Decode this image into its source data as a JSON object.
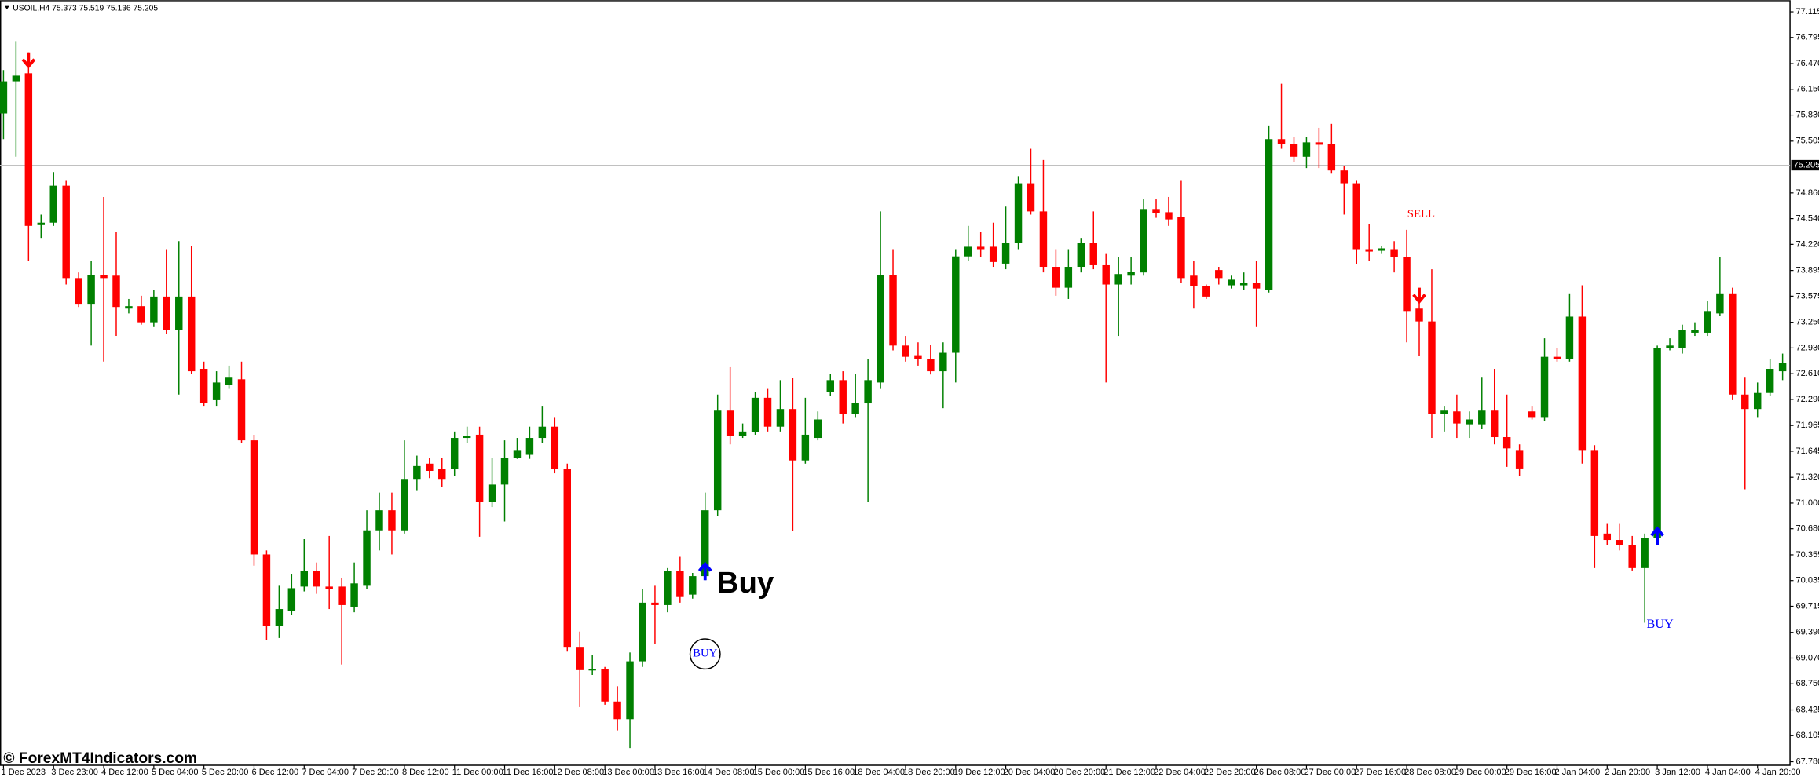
{
  "chart_data": {
    "type": "candlestick",
    "header": "USOIL,H4  75.373 75.519 75.136 75.205",
    "categories": [
      "1 Dec 2023",
      null,
      null,
      null,
      "3 Dec 23:00",
      null,
      null,
      null,
      "4 Dec 12:00",
      null,
      null,
      null,
      "5 Dec 04:00",
      null,
      null,
      null,
      "5 Dec 20:00",
      null,
      null,
      null,
      "6 Dec 12:00",
      null,
      null,
      null,
      "7 Dec 04:00",
      null,
      null,
      null,
      "7 Dec 20:00",
      null,
      null,
      null,
      "8 Dec 12:00",
      null,
      null,
      null,
      "11 Dec 00:00",
      null,
      null,
      null,
      "11 Dec 16:00",
      null,
      null,
      null,
      "12 Dec 08:00",
      null,
      null,
      null,
      "13 Dec 00:00",
      null,
      null,
      null,
      "13 Dec 16:00",
      null,
      null,
      null,
      "14 Dec 08:00",
      null,
      null,
      null,
      "15 Dec 00:00",
      null,
      null,
      null,
      "15 Dec 16:00",
      null,
      null,
      null,
      "18 Dec 04:00",
      null,
      null,
      null,
      "18 Dec 20:00",
      null,
      null,
      null,
      "19 Dec 12:00",
      null,
      null,
      null,
      "20 Dec 04:00",
      null,
      null,
      null,
      "20 Dec 20:00",
      null,
      null,
      null,
      "21 Dec 12:00",
      null,
      null,
      null,
      "22 Dec 04:00",
      null,
      null,
      null,
      "22 Dec 20:00",
      null,
      null,
      null,
      "26 Dec 08:00",
      null,
      null,
      null,
      "27 Dec 00:00",
      null,
      null,
      null,
      "27 Dec 16:00",
      null,
      null,
      null,
      "28 Dec 08:00",
      null,
      null,
      null,
      "29 Dec 00:00",
      null,
      null,
      null,
      "29 Dec 16:00",
      null,
      null,
      null,
      "2 Jan 04:00",
      null,
      null,
      null,
      "2 Jan 20:00",
      null,
      null,
      null,
      "3 Jan 12:00",
      null,
      null,
      null,
      "4 Jan 04:00",
      null,
      null,
      null,
      "4 Jan 20:00",
      null,
      null
    ],
    "open": [
      75.85,
      76.25,
      76.35,
      74.46,
      74.49,
      74.95,
      73.8,
      73.48,
      73.84,
      73.83,
      73.42,
      73.45,
      73.25,
      73.57,
      73.15,
      73.57,
      72.67,
      72.28,
      72.47,
      72.54,
      71.78,
      70.36,
      69.47,
      69.66,
      69.96,
      70.15,
      69.96,
      69.96,
      69.71,
      69.97,
      70.66,
      70.91,
      70.66,
      71.3,
      71.49,
      71.42,
      71.42,
      71.81,
      71.85,
      71.01,
      71.23,
      71.56,
      71.6,
      71.81,
      71.95,
      71.42,
      69.21,
      68.92,
      68.93,
      68.53,
      68.31,
      69.03,
      69.76,
      69.73,
      70.15,
      69.86,
      70.09,
      70.91,
      72.15,
      71.83,
      71.88,
      72.31,
      71.95,
      72.17,
      71.53,
      71.81,
      72.38,
      72.53,
      72.11,
      72.24,
      72.5,
      73.84,
      72.96,
      72.84,
      72.79,
      72.64,
      72.87,
      74.07,
      74.19,
      74.19,
      73.98,
      74.24,
      74.98,
      74.63,
      73.94,
      73.68,
      73.94,
      74.24,
      73.96,
      73.72,
      73.83,
      73.87,
      74.66,
      74.62,
      74.56,
      73.83,
      73.7,
      73.9,
      73.71,
      73.71,
      73.74,
      73.65,
      75.53,
      75.47,
      75.31,
      75.49,
      75.47,
      75.14,
      74.98,
      74.16,
      74.14,
      74.16,
      74.06,
      73.42,
      73.26,
      72.11,
      72.14,
      71.98,
      71.98,
      72.15,
      71.82,
      71.66,
      72.14,
      72.07,
      72.82,
      72.79,
      73.32,
      71.66,
      70.62,
      70.54,
      70.48,
      70.19,
      70.56,
      72.93,
      72.93,
      73.12,
      73.12,
      73.36,
      73.61,
      72.35,
      72.17,
      72.37,
      72.64
    ],
    "high": [
      76.39,
      76.75,
      76.61,
      74.59,
      75.12,
      75.02,
      73.87,
      74.01,
      74.81,
      74.37,
      73.54,
      73.58,
      73.65,
      74.16,
      74.26,
      74.2,
      72.76,
      72.64,
      72.71,
      72.76,
      71.85,
      70.41,
      69.97,
      70.12,
      70.55,
      70.26,
      70.59,
      70.07,
      70.26,
      70.91,
      71.13,
      71.13,
      71.78,
      71.59,
      71.56,
      71.56,
      71.89,
      71.95,
      71.95,
      71.56,
      71.78,
      71.81,
      71.95,
      72.21,
      72.07,
      71.49,
      69.4,
      69.11,
      68.96,
      68.72,
      69.14,
      69.93,
      69.97,
      70.19,
      70.33,
      70.13,
      71.13,
      72.35,
      72.7,
      71.99,
      72.38,
      72.43,
      72.53,
      72.56,
      72.31,
      72.14,
      72.61,
      72.64,
      72.61,
      72.79,
      74.63,
      74.16,
      73.08,
      73.0,
      72.97,
      73.0,
      74.16,
      74.45,
      74.37,
      74.49,
      74.69,
      75.07,
      75.41,
      75.27,
      74.16,
      74.16,
      74.3,
      74.63,
      74.11,
      74.06,
      74.06,
      74.78,
      74.78,
      74.81,
      75.02,
      74.01,
      73.72,
      73.94,
      73.83,
      73.87,
      74.01,
      75.7,
      76.22,
      75.56,
      75.56,
      75.67,
      75.72,
      75.2,
      75.02,
      74.47,
      74.2,
      74.26,
      74.4,
      73.54,
      73.91,
      72.21,
      72.35,
      72.14,
      72.57,
      72.67,
      72.35,
      71.73,
      72.21,
      73.05,
      72.93,
      73.61,
      73.71,
      71.72,
      70.74,
      70.74,
      70.59,
      70.62,
      72.96,
      73.05,
      73.22,
      73.25,
      73.51,
      74.06,
      73.68,
      72.57,
      72.5,
      72.79,
      72.86
    ],
    "low": [
      75.53,
      75.31,
      74.01,
      74.3,
      74.45,
      73.72,
      73.44,
      72.96,
      72.76,
      73.08,
      73.36,
      73.22,
      73.19,
      73.1,
      72.35,
      72.61,
      72.21,
      72.21,
      72.43,
      71.75,
      70.22,
      69.29,
      69.32,
      69.61,
      69.9,
      69.87,
      69.68,
      68.99,
      69.64,
      69.93,
      70.41,
      70.36,
      70.62,
      71.16,
      71.31,
      71.2,
      71.34,
      71.75,
      70.58,
      70.95,
      70.77,
      71.55,
      71.55,
      71.75,
      71.37,
      69.15,
      68.46,
      68.86,
      68.49,
      68.17,
      67.95,
      68.96,
      69.25,
      69.64,
      69.76,
      69.81,
      70.04,
      70.84,
      71.73,
      71.81,
      71.85,
      71.89,
      71.89,
      70.65,
      71.49,
      71.78,
      72.33,
      71.99,
      72.07,
      71.01,
      72.43,
      72.9,
      72.76,
      72.71,
      72.6,
      72.18,
      72.5,
      74.01,
      74.06,
      73.94,
      73.91,
      74.16,
      74.59,
      73.87,
      73.58,
      73.54,
      73.87,
      73.91,
      72.5,
      73.08,
      73.72,
      73.83,
      74.55,
      74.45,
      73.74,
      73.42,
      73.54,
      73.72,
      73.67,
      73.65,
      73.19,
      73.62,
      75.41,
      75.24,
      75.17,
      75.17,
      75.1,
      74.59,
      73.97,
      74.01,
      74.11,
      73.87,
      73.0,
      72.83,
      71.81,
      71.89,
      71.81,
      71.81,
      71.92,
      71.73,
      71.45,
      71.34,
      72.04,
      72.02,
      72.76,
      72.76,
      71.49,
      70.19,
      70.48,
      70.41,
      70.16,
      69.51,
      70.48,
      72.9,
      72.86,
      73.08,
      73.08,
      73.33,
      72.28,
      71.17,
      72.07,
      72.33,
      72.53
    ],
    "close": [
      76.25,
      76.32,
      74.45,
      74.49,
      74.95,
      73.8,
      73.48,
      73.84,
      73.8,
      73.44,
      73.45,
      73.25,
      73.57,
      73.15,
      73.57,
      72.64,
      72.25,
      72.5,
      72.57,
      71.78,
      70.36,
      69.47,
      69.68,
      69.94,
      70.15,
      69.96,
      69.93,
      69.73,
      70.0,
      70.66,
      70.91,
      70.66,
      71.3,
      71.46,
      71.4,
      71.3,
      71.81,
      71.83,
      71.01,
      71.23,
      71.56,
      71.66,
      71.81,
      71.95,
      71.42,
      69.21,
      68.92,
      68.93,
      68.53,
      68.31,
      69.03,
      69.76,
      69.73,
      70.15,
      69.83,
      70.09,
      70.91,
      72.15,
      71.83,
      71.89,
      72.31,
      71.95,
      72.17,
      71.53,
      71.85,
      72.04,
      72.53,
      72.11,
      72.25,
      72.53,
      73.84,
      72.96,
      72.82,
      72.79,
      72.64,
      72.87,
      74.07,
      74.19,
      74.16,
      74.0,
      74.24,
      74.98,
      74.63,
      73.94,
      73.68,
      73.94,
      74.24,
      73.96,
      73.72,
      73.85,
      73.88,
      74.66,
      74.61,
      74.53,
      73.8,
      73.7,
      73.57,
      73.8,
      73.78,
      73.74,
      73.67,
      75.53,
      75.47,
      75.31,
      75.49,
      75.46,
      75.14,
      74.98,
      74.16,
      74.13,
      74.17,
      74.06,
      73.39,
      73.26,
      72.11,
      72.15,
      71.99,
      72.04,
      72.15,
      71.82,
      71.68,
      71.43,
      72.07,
      72.82,
      72.79,
      73.32,
      71.66,
      70.59,
      70.54,
      70.48,
      70.19,
      70.56,
      72.93,
      72.96,
      73.15,
      73.15,
      73.39,
      73.61,
      72.35,
      72.17,
      72.37,
      72.67,
      72.74
    ],
    "up_color": "#008000",
    "down_color": "#ff0000",
    "ylim": [
      67.736,
      77.26
    ],
    "yticks": [
      77.115,
      76.795,
      {
        "value": 76.47,
        "label": "76.470"
      },
      {
        "value": 76.15,
        "label": "76.150"
      },
      {
        "value": 75.83,
        "label": "75.830"
      },
      75.505,
      {
        "value": 74.86,
        "label": "74.860"
      },
      {
        "value": 74.54,
        "label": "74.540"
      },
      {
        "value": 74.22,
        "label": "74.220"
      },
      73.895,
      73.575,
      {
        "value": 73.25,
        "label": "73.250"
      },
      {
        "value": 72.93,
        "label": "72.930"
      },
      {
        "value": 72.61,
        "label": "72.610"
      },
      {
        "value": 72.29,
        "label": "72.290"
      },
      71.965,
      71.645,
      {
        "value": 71.32,
        "label": "71.320"
      },
      {
        "value": 71.0,
        "label": "71.000"
      },
      {
        "value": 70.68,
        "label": "70.680"
      },
      70.355,
      70.035,
      69.715,
      {
        "value": 69.39,
        "label": "69.390"
      },
      {
        "value": 69.07,
        "label": "69.070"
      },
      {
        "value": 68.75,
        "label": "68.750"
      },
      68.425,
      68.105,
      {
        "value": 67.78,
        "label": "67.780"
      }
    ],
    "last_price": 75.205,
    "sell_signals": [
      2,
      113
    ],
    "buy_signals": [
      56,
      132
    ],
    "sell_color": "#ff0000",
    "buy_color": "#0000ff",
    "annotations": [
      "Buy",
      "BUY",
      "SELL",
      "BUY"
    ]
  },
  "watermark": "© ForexMT4Indicators.com"
}
